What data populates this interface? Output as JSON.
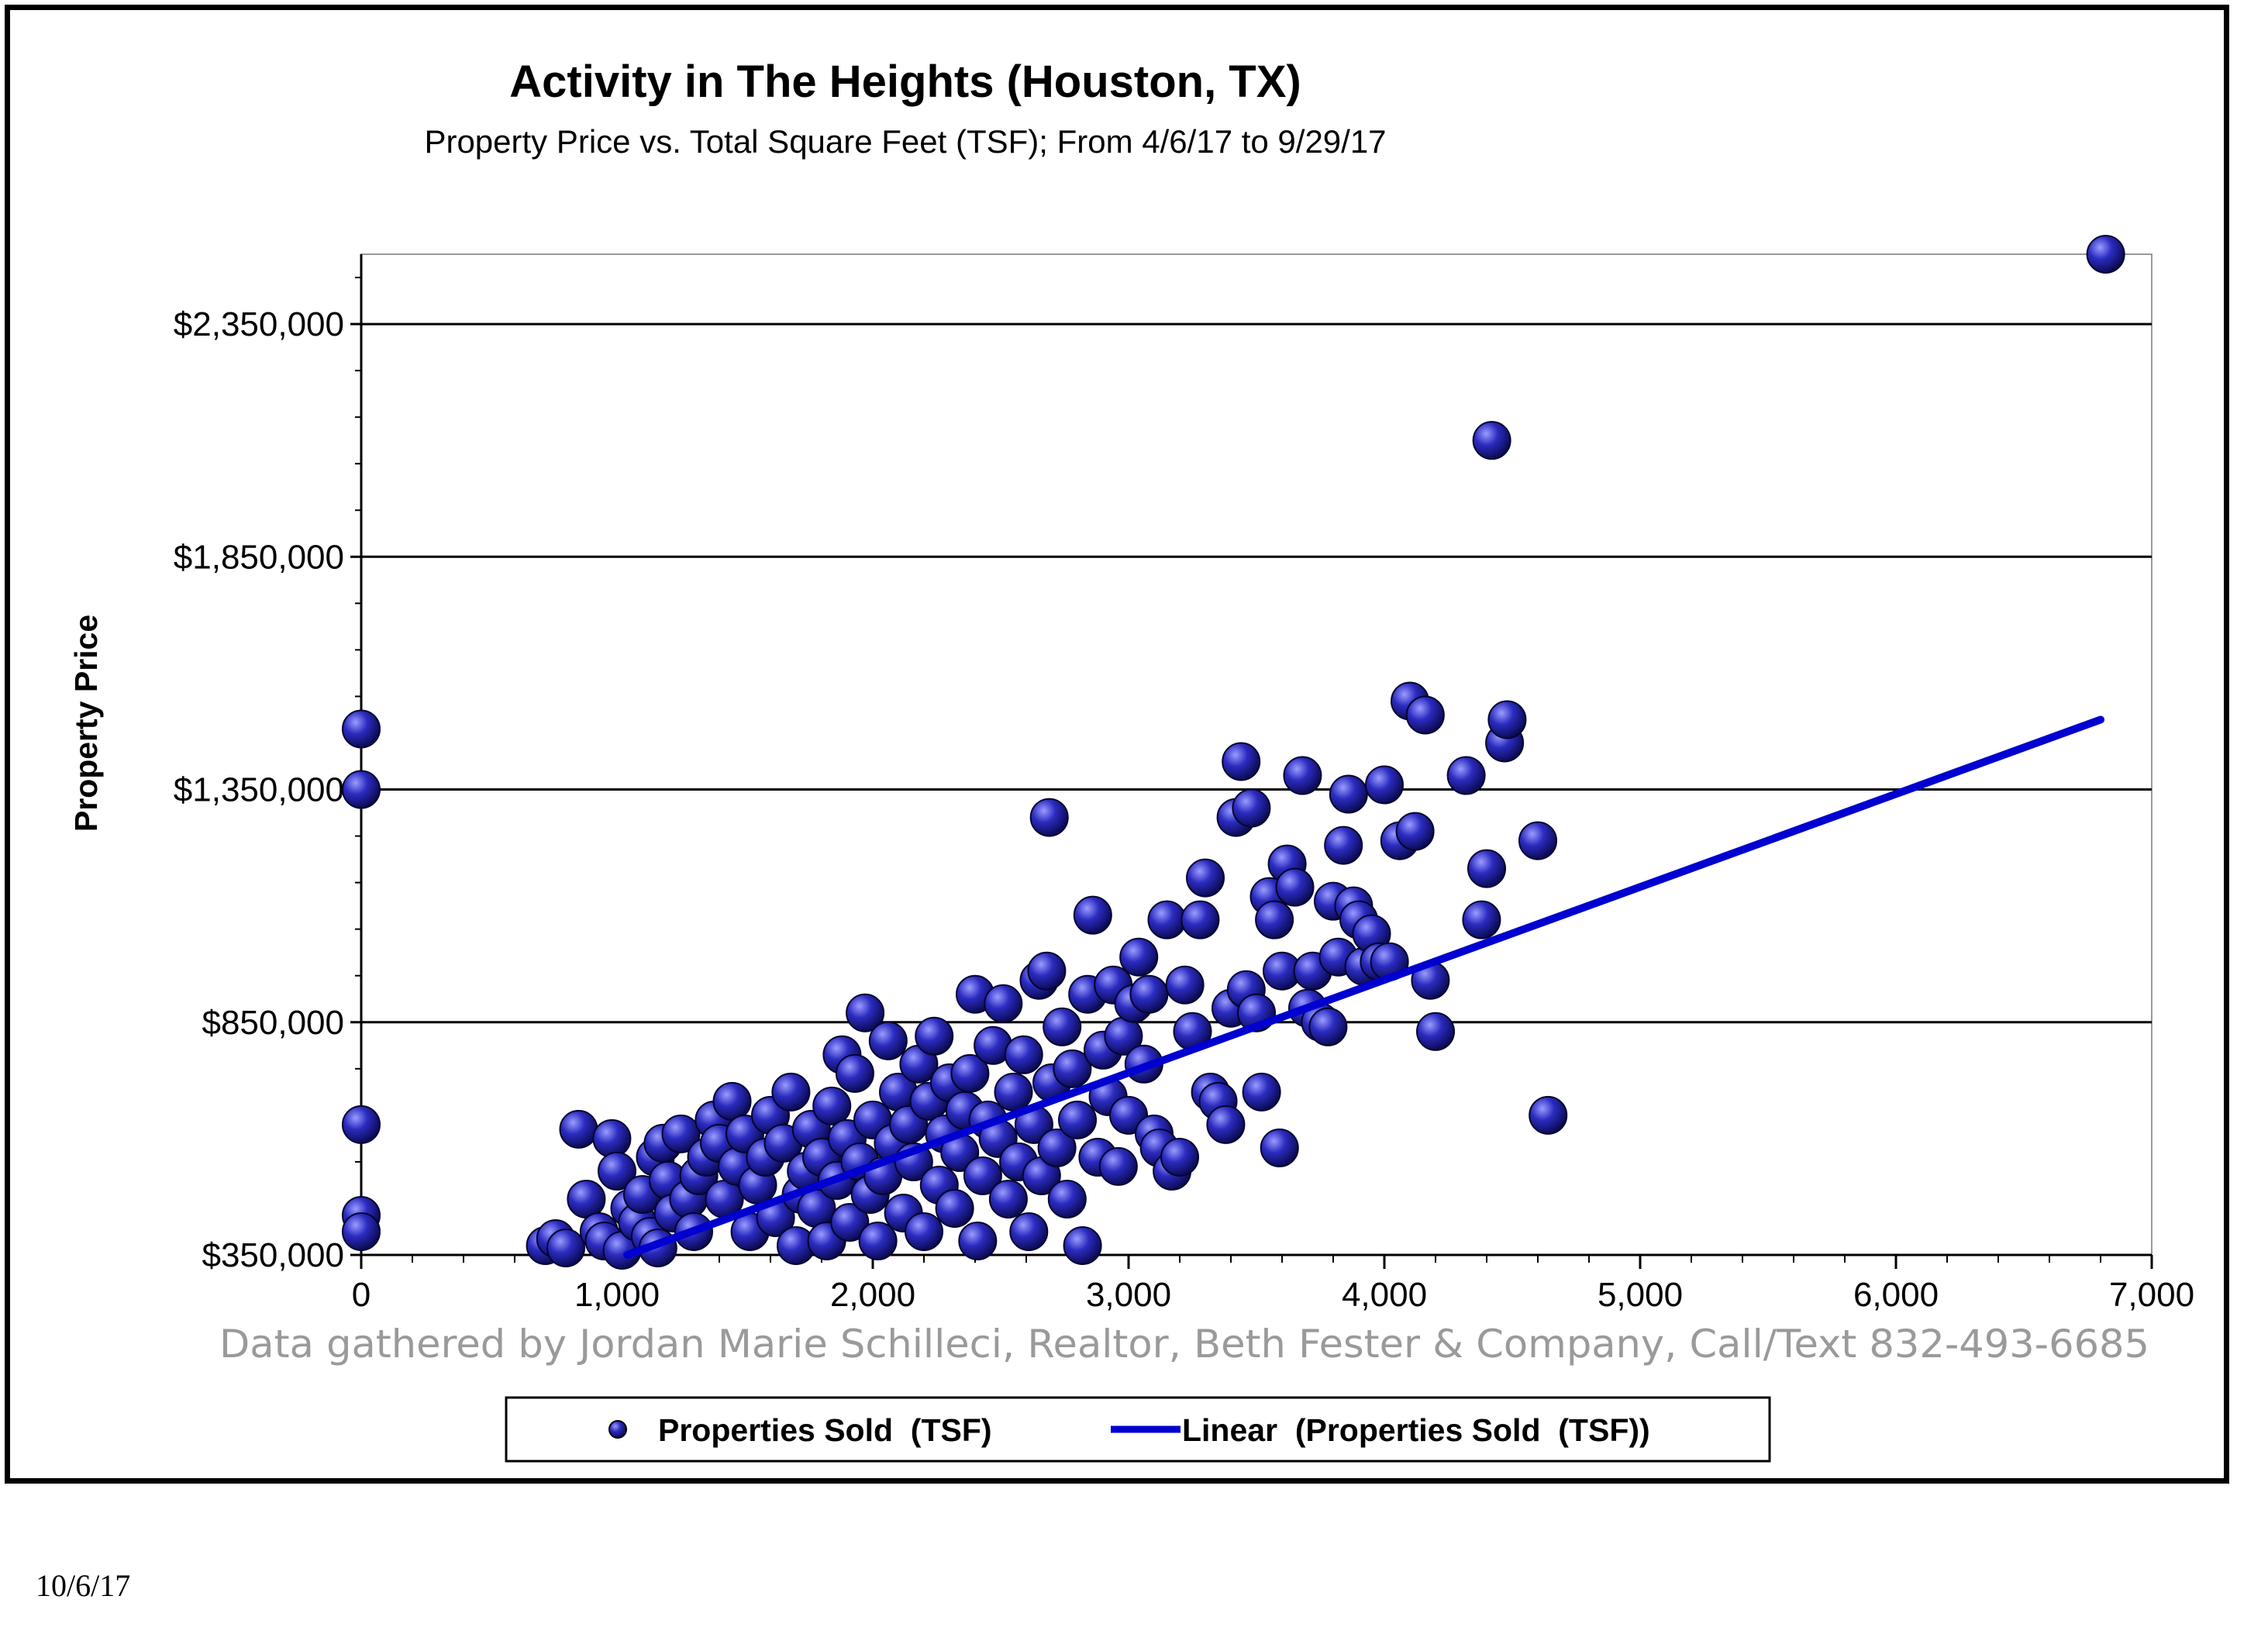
{
  "footer": {
    "date": "10/6/17"
  },
  "chart_data": {
    "type": "scatter",
    "title": "Activity in The Heights (Houston, TX)",
    "subtitle": "Property Price vs. Total Square Feet (TSF); From 4/6/17 to 9/29/17",
    "xlabel": "",
    "ylabel": "Property Price",
    "xlim": [
      0,
      7000
    ],
    "ylim": [
      350000,
      2500000
    ],
    "x_ticks": [
      0,
      1000,
      2000,
      3000,
      4000,
      5000,
      6000,
      7000
    ],
    "x_tick_labels": [
      "0",
      "1,000",
      "2,000",
      "3,000",
      "4,000",
      "5,000",
      "6,000",
      "7,000"
    ],
    "y_ticks": [
      350000,
      850000,
      1350000,
      1850000,
      2350000
    ],
    "y_tick_labels": [
      "$350,000",
      "$850,000",
      "$1,350,000",
      "$1,850,000",
      "$2,350,000"
    ],
    "grid": "horizontal",
    "annotation": "Data gathered by Jordan Marie Schilleci, Realtor, Beth Fester & Company, Call/Text 832-493-6685",
    "legend_position": "bottom",
    "colors": {
      "point": "#1c1ca8",
      "point_highlight": "#8a8cff",
      "trendline": "#0000d0"
    },
    "series": [
      {
        "name": "Properties Sold  (TSF)",
        "points": [
          [
            0,
            1480000
          ],
          [
            0,
            1350000
          ],
          [
            0,
            630000
          ],
          [
            0,
            435000
          ],
          [
            0,
            400000
          ],
          [
            720,
            370000
          ],
          [
            760,
            385000
          ],
          [
            800,
            365000
          ],
          [
            850,
            620000
          ],
          [
            880,
            470000
          ],
          [
            930,
            400000
          ],
          [
            950,
            380000
          ],
          [
            980,
            600000
          ],
          [
            1000,
            530000
          ],
          [
            1020,
            360000
          ],
          [
            1050,
            450000
          ],
          [
            1080,
            420000
          ],
          [
            1100,
            480000
          ],
          [
            1130,
            390000
          ],
          [
            1150,
            560000
          ],
          [
            1160,
            365000
          ],
          [
            1180,
            590000
          ],
          [
            1200,
            510000
          ],
          [
            1220,
            440000
          ],
          [
            1250,
            610000
          ],
          [
            1280,
            470000
          ],
          [
            1300,
            400000
          ],
          [
            1320,
            520000
          ],
          [
            1350,
            560000
          ],
          [
            1380,
            640000
          ],
          [
            1400,
            590000
          ],
          [
            1420,
            470000
          ],
          [
            1450,
            680000
          ],
          [
            1470,
            540000
          ],
          [
            1500,
            610000
          ],
          [
            1520,
            400000
          ],
          [
            1550,
            500000
          ],
          [
            1580,
            560000
          ],
          [
            1600,
            650000
          ],
          [
            1620,
            430000
          ],
          [
            1650,
            590000
          ],
          [
            1680,
            700000
          ],
          [
            1700,
            370000
          ],
          [
            1720,
            480000
          ],
          [
            1740,
            530000
          ],
          [
            1760,
            620000
          ],
          [
            1780,
            450000
          ],
          [
            1800,
            560000
          ],
          [
            1820,
            380000
          ],
          [
            1840,
            670000
          ],
          [
            1860,
            510000
          ],
          [
            1880,
            780000
          ],
          [
            1900,
            600000
          ],
          [
            1910,
            420000
          ],
          [
            1930,
            740000
          ],
          [
            1950,
            550000
          ],
          [
            1970,
            870000
          ],
          [
            1990,
            480000
          ],
          [
            2000,
            640000
          ],
          [
            2020,
            380000
          ],
          [
            2040,
            520000
          ],
          [
            2060,
            810000
          ],
          [
            2080,
            590000
          ],
          [
            2100,
            700000
          ],
          [
            2120,
            440000
          ],
          [
            2140,
            630000
          ],
          [
            2160,
            550000
          ],
          [
            2180,
            760000
          ],
          [
            2200,
            400000
          ],
          [
            2220,
            680000
          ],
          [
            2240,
            820000
          ],
          [
            2260,
            500000
          ],
          [
            2280,
            610000
          ],
          [
            2300,
            720000
          ],
          [
            2320,
            450000
          ],
          [
            2340,
            570000
          ],
          [
            2360,
            660000
          ],
          [
            2380,
            740000
          ],
          [
            2400,
            910000
          ],
          [
            2410,
            380000
          ],
          [
            2430,
            520000
          ],
          [
            2450,
            640000
          ],
          [
            2470,
            800000
          ],
          [
            2490,
            600000
          ],
          [
            2510,
            890000
          ],
          [
            2530,
            470000
          ],
          [
            2550,
            700000
          ],
          [
            2570,
            550000
          ],
          [
            2590,
            780000
          ],
          [
            2610,
            400000
          ],
          [
            2630,
            630000
          ],
          [
            2650,
            940000
          ],
          [
            2660,
            520000
          ],
          [
            2680,
            960000
          ],
          [
            2690,
            1290000
          ],
          [
            2700,
            720000
          ],
          [
            2720,
            580000
          ],
          [
            2740,
            840000
          ],
          [
            2760,
            470000
          ],
          [
            2780,
            750000
          ],
          [
            2800,
            640000
          ],
          [
            2820,
            370000
          ],
          [
            2840,
            910000
          ],
          [
            2860,
            1080000
          ],
          [
            2880,
            560000
          ],
          [
            2900,
            790000
          ],
          [
            2920,
            690000
          ],
          [
            2940,
            930000
          ],
          [
            2960,
            540000
          ],
          [
            2980,
            820000
          ],
          [
            3000,
            650000
          ],
          [
            3020,
            890000
          ],
          [
            3040,
            990000
          ],
          [
            3060,
            760000
          ],
          [
            3080,
            910000
          ],
          [
            3100,
            610000
          ],
          [
            3120,
            580000
          ],
          [
            3150,
            1070000
          ],
          [
            3170,
            530000
          ],
          [
            3200,
            560000
          ],
          [
            3220,
            930000
          ],
          [
            3250,
            830000
          ],
          [
            3280,
            1070000
          ],
          [
            3300,
            1160000
          ],
          [
            3320,
            700000
          ],
          [
            3350,
            680000
          ],
          [
            3380,
            630000
          ],
          [
            3400,
            880000
          ],
          [
            3420,
            1290000
          ],
          [
            3440,
            1410000
          ],
          [
            3460,
            920000
          ],
          [
            3480,
            1310000
          ],
          [
            3500,
            870000
          ],
          [
            3520,
            700000
          ],
          [
            3550,
            1120000
          ],
          [
            3570,
            1070000
          ],
          [
            3590,
            580000
          ],
          [
            3600,
            960000
          ],
          [
            3620,
            1190000
          ],
          [
            3650,
            1140000
          ],
          [
            3680,
            1380000
          ],
          [
            3700,
            880000
          ],
          [
            3720,
            960000
          ],
          [
            3750,
            850000
          ],
          [
            3780,
            840000
          ],
          [
            3800,
            1110000
          ],
          [
            3820,
            990000
          ],
          [
            3840,
            1230000
          ],
          [
            3860,
            1340000
          ],
          [
            3880,
            1100000
          ],
          [
            3900,
            1070000
          ],
          [
            3920,
            970000
          ],
          [
            3950,
            1040000
          ],
          [
            3980,
            980000
          ],
          [
            4000,
            1360000
          ],
          [
            4020,
            980000
          ],
          [
            4060,
            1240000
          ],
          [
            4100,
            1540000
          ],
          [
            4120,
            1260000
          ],
          [
            4160,
            1510000
          ],
          [
            4180,
            940000
          ],
          [
            4200,
            830000
          ],
          [
            4320,
            1380000
          ],
          [
            4380,
            1070000
          ],
          [
            4400,
            1180000
          ],
          [
            4420,
            2100000
          ],
          [
            4470,
            1450000
          ],
          [
            4480,
            1500000
          ],
          [
            4600,
            1240000
          ],
          [
            4640,
            650000
          ],
          [
            6820,
            2500000
          ]
        ]
      }
    ],
    "trendline": {
      "name": "Linear  (Properties Sold  (TSF))",
      "type": "linear",
      "x": [
        1040,
        6800
      ],
      "y": [
        350000,
        1500000
      ]
    }
  }
}
